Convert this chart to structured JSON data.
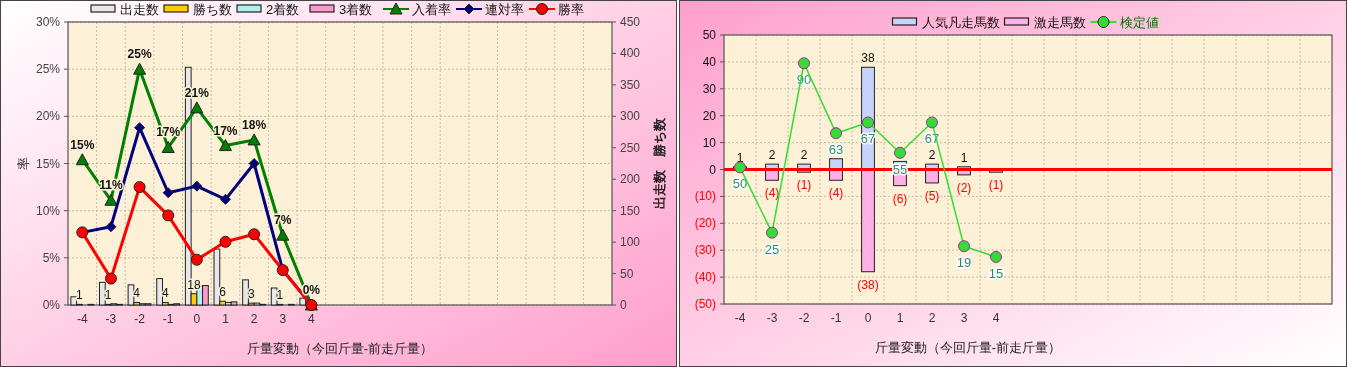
{
  "chart_data": [
    {
      "type": "bar",
      "categories": [
        "-4",
        "-3",
        "-2",
        "-1",
        "0",
        "1",
        "2",
        "3",
        "4",
        null,
        null,
        null,
        null,
        null,
        null,
        null,
        null,
        null,
        null
      ],
      "xlabel": "斤量変動（今回斤量-前走斤量）",
      "ylabel": "率",
      "y2label": "出走数　勝ち数",
      "ylim": [
        0,
        30
      ],
      "yticks": [
        {
          "value": 0,
          "label": "0%"
        },
        {
          "value": 5,
          "label": "5%"
        },
        {
          "value": 10,
          "label": "10%"
        },
        {
          "value": 15,
          "label": "15%"
        },
        {
          "value": 20,
          "label": "20%"
        },
        {
          "value": 25,
          "label": "25%"
        },
        {
          "value": 30,
          "label": "30%"
        }
      ],
      "y2lim": [
        0,
        450
      ],
      "y2ticks": [
        0,
        50,
        100,
        150,
        200,
        250,
        300,
        350,
        400,
        450
      ],
      "grid": true,
      "legend": "top",
      "series": [
        {
          "name": "出走数",
          "type": "bar",
          "axis": "y2",
          "color": "#e8e8e8",
          "values": [
            13,
            36,
            32,
            42,
            378,
            89,
            40,
            27,
            11,
            null,
            null,
            null,
            null,
            null,
            null,
            null,
            null,
            null,
            null
          ]
        },
        {
          "name": "勝ち数",
          "type": "bar",
          "axis": "y2",
          "color": "#ffcc00",
          "values": [
            1,
            1,
            4,
            4,
            18,
            6,
            3,
            1,
            0,
            null,
            null,
            null,
            null,
            null,
            null,
            null,
            null,
            null,
            null
          ],
          "value_labels": [
            "1",
            "1",
            "4",
            "4",
            "18",
            "6",
            "3",
            "1",
            null,
            null,
            null,
            null,
            null,
            null,
            null,
            null,
            null,
            null,
            null
          ]
        },
        {
          "name": "2着数",
          "type": "bar",
          "axis": "y2",
          "color": "#b0f0f0",
          "values": [
            0,
            2,
            2,
            1,
            30,
            4,
            3,
            0,
            0,
            null,
            null,
            null,
            null,
            null,
            null,
            null,
            null,
            null,
            null
          ]
        },
        {
          "name": "3着数",
          "type": "bar",
          "axis": "y2",
          "color": "#ff99cc",
          "values": [
            1,
            1,
            2,
            2,
            31,
            5,
            1,
            1,
            0,
            null,
            null,
            null,
            null,
            null,
            null,
            null,
            null,
            null,
            null
          ]
        },
        {
          "name": "入着率",
          "type": "line",
          "color": "#008000",
          "marker": "triangle",
          "values": [
            15.4,
            11.1,
            25,
            16.7,
            20.9,
            16.9,
            17.5,
            7.4,
            0,
            null,
            null,
            null,
            null,
            null,
            null,
            null,
            null,
            null,
            null
          ],
          "value_labels": [
            "15%",
            "11%",
            "25%",
            "17%",
            "21%",
            "17%",
            "18%",
            "7%",
            "0%",
            null,
            null,
            null,
            null,
            null,
            null,
            null,
            null,
            null,
            null
          ]
        },
        {
          "name": "連対率",
          "type": "line",
          "color": "#000080",
          "marker": "diamond",
          "values": [
            7.7,
            8.3,
            18.8,
            11.9,
            12.6,
            11.2,
            15,
            3.7,
            0,
            null,
            null,
            null,
            null,
            null,
            null,
            null,
            null,
            null,
            null
          ]
        },
        {
          "name": "勝率",
          "type": "line",
          "color": "#ff0000",
          "marker": "circle",
          "values": [
            7.7,
            2.8,
            12.5,
            9.5,
            4.8,
            6.7,
            7.5,
            3.7,
            0,
            null,
            null,
            null,
            null,
            null,
            null,
            null,
            null,
            null,
            null
          ]
        }
      ]
    },
    {
      "type": "bar",
      "stacked": true,
      "categories": [
        "-4",
        "-3",
        "-2",
        "-1",
        "0",
        "1",
        "2",
        "3",
        "4",
        null,
        null,
        null,
        null,
        null,
        null,
        null,
        null,
        null,
        null
      ],
      "xlabel": "斤量変動（今回斤量-前走斤量）",
      "ylim": [
        -50,
        50
      ],
      "yticks": [
        {
          "value": -50,
          "label": "(50)"
        },
        {
          "value": -40,
          "label": "(40)"
        },
        {
          "value": -30,
          "label": "(30)"
        },
        {
          "value": -20,
          "label": "(20)"
        },
        {
          "value": -10,
          "label": "(10)"
        },
        0,
        10,
        20,
        30,
        40,
        50
      ],
      "grid": true,
      "legend": "top",
      "ref_lines": [
        {
          "axis": "y",
          "value": 0,
          "color": "#ff0000"
        }
      ],
      "series": [
        {
          "name": "人気凡走馬数",
          "color": "#c8d4ff",
          "values": [
            1,
            2,
            2,
            4,
            38,
            3,
            2,
            1,
            0,
            null,
            null,
            null,
            null,
            null,
            null,
            null,
            null,
            null,
            null
          ],
          "value_labels": [
            "1",
            "2",
            "2",
            null,
            "38",
            null,
            "2",
            "1",
            null,
            null,
            null,
            null,
            null,
            null,
            null,
            null,
            null,
            null,
            null
          ]
        },
        {
          "name": "激走馬数",
          "color": "#ffb0e8",
          "values": [
            0,
            -4,
            -1,
            -4,
            -38,
            -6,
            -5,
            -2,
            -1,
            null,
            null,
            null,
            null,
            null,
            null,
            null,
            null,
            null,
            null
          ],
          "value_labels": [
            null,
            "(4)",
            "(1)",
            "(4)",
            "(38)",
            "(6)",
            "(5)",
            "(2)",
            "(1)",
            null,
            null,
            null,
            null,
            null,
            null,
            null,
            null,
            null,
            null
          ]
        },
        {
          "name": "検定値",
          "type": "line",
          "color": "#33dd33",
          "marker": "circle",
          "values": [
            0.8,
            -23.5,
            39.5,
            13.5,
            17.5,
            6.2,
            17.5,
            -28.5,
            -32.5,
            null,
            null,
            null,
            null,
            null,
            null,
            null,
            null,
            null,
            null
          ]
        }
      ],
      "annotations": [
        {
          "text": "50",
          "x": "-4",
          "y": 0.8
        },
        {
          "text": "25",
          "x": "-3",
          "y": -23.5
        },
        {
          "text": "90",
          "x": "-2",
          "y": 39.5
        },
        {
          "text": "63",
          "x": "-1",
          "y": 13.5
        },
        {
          "text": "67",
          "x": "0",
          "y": 17.5
        },
        {
          "text": "55",
          "x": "1",
          "y": 6.2
        },
        {
          "text": "67",
          "x": "2",
          "y": 17.5
        },
        {
          "text": "19",
          "x": "3",
          "y": -28.5
        },
        {
          "text": "15",
          "x": "4",
          "y": -32.5
        }
      ]
    }
  ]
}
